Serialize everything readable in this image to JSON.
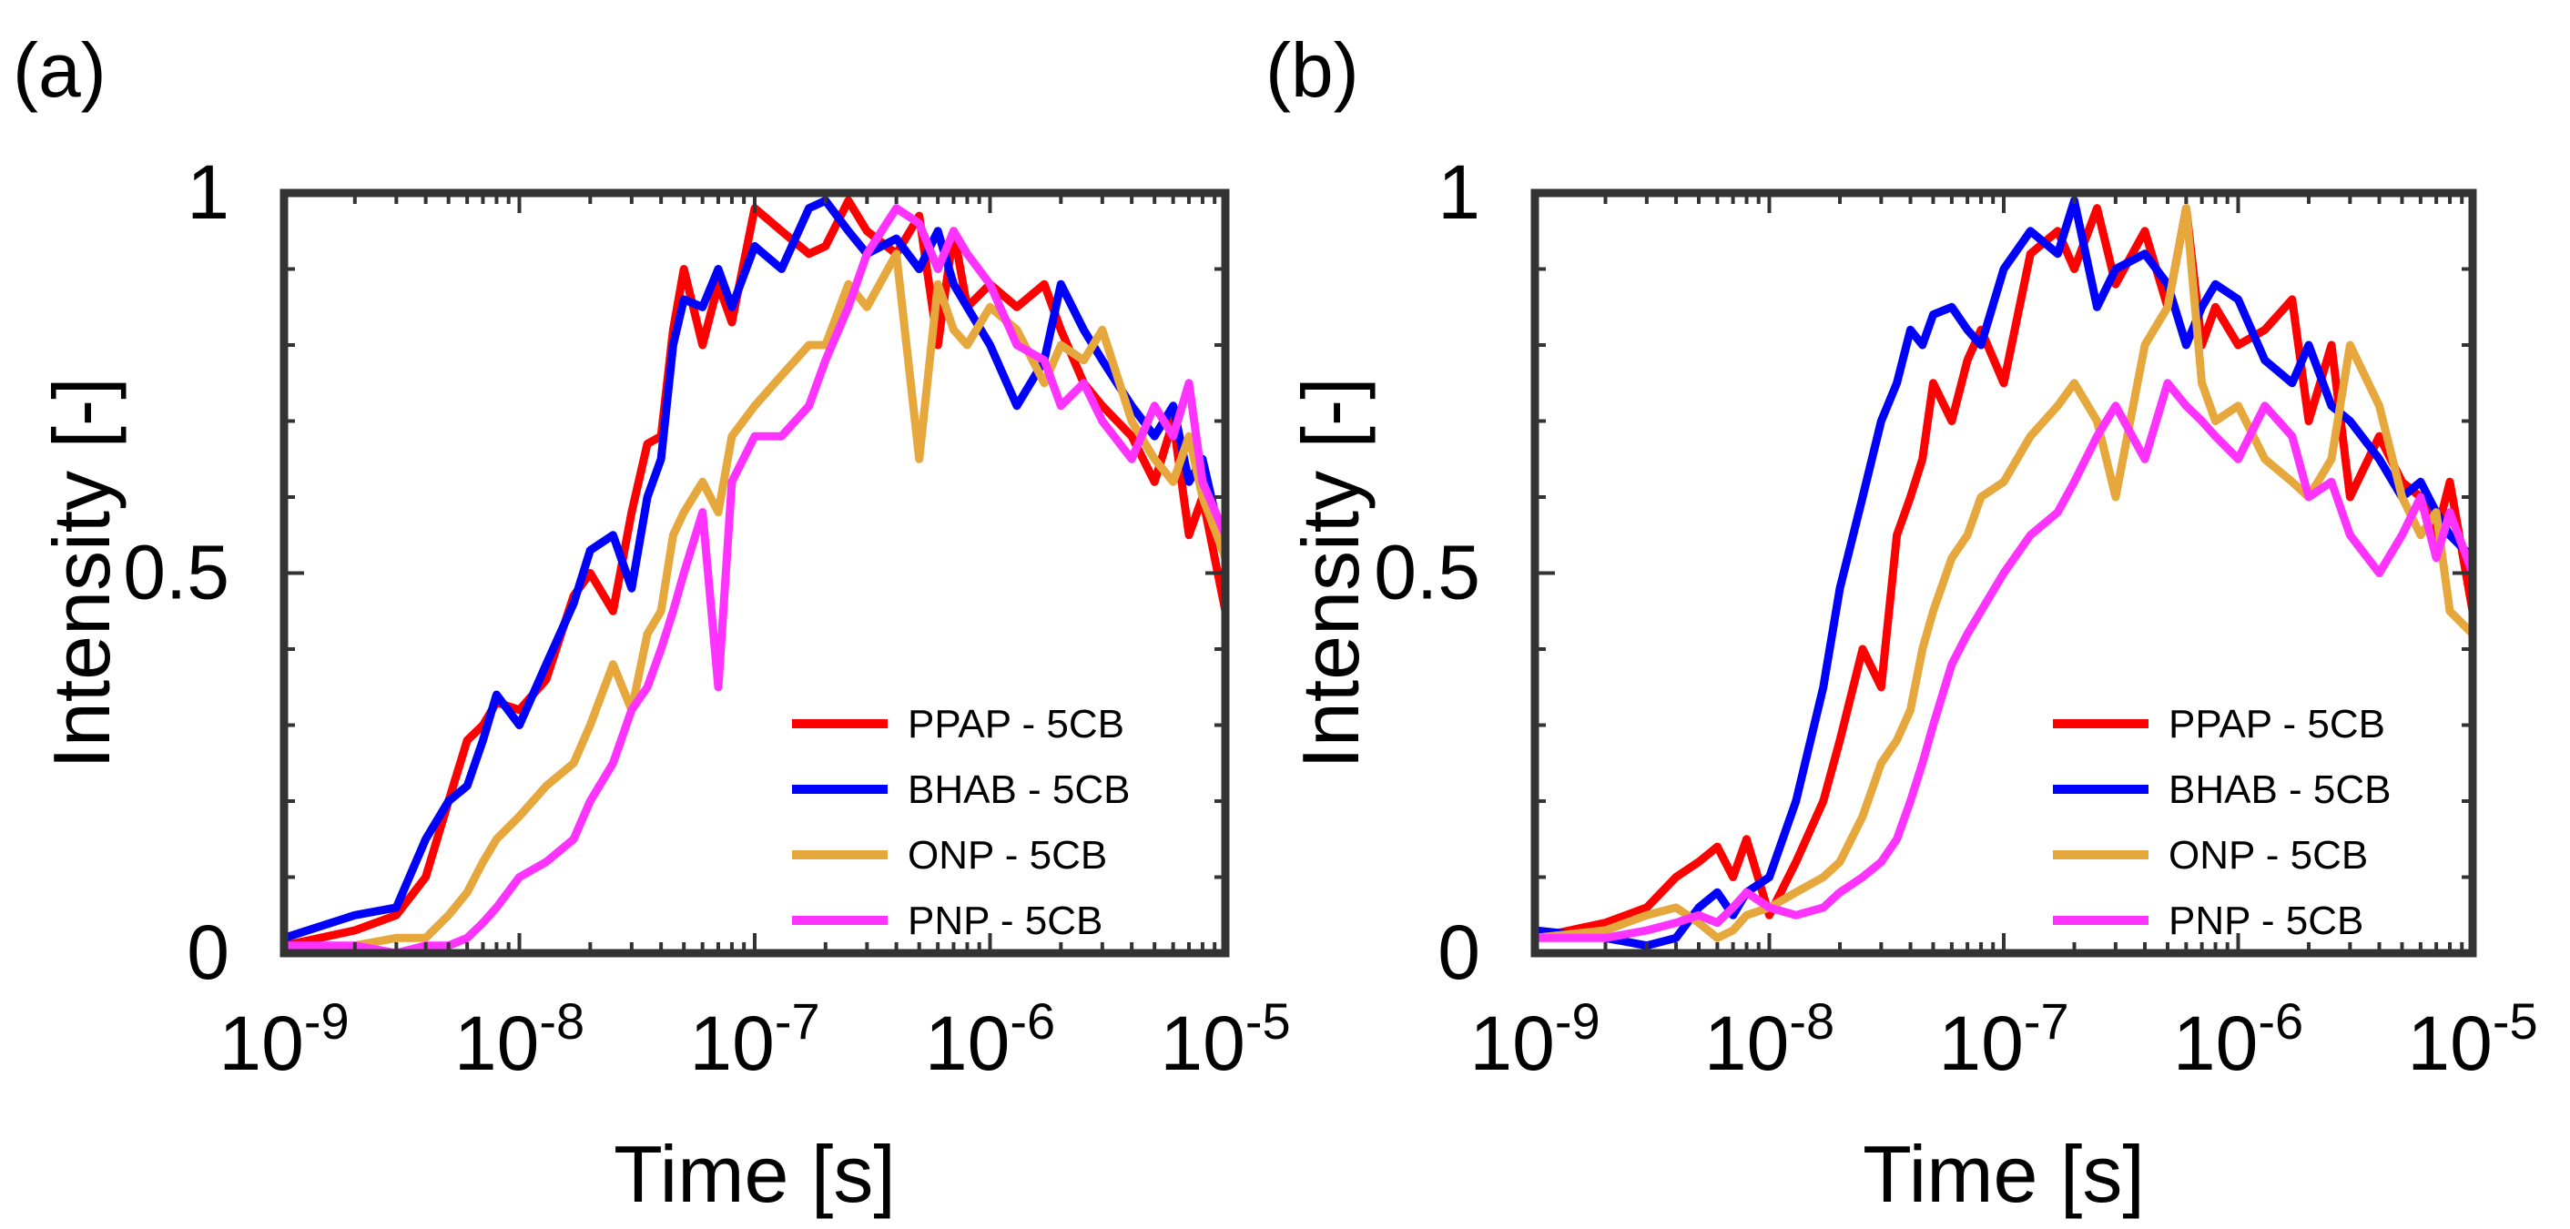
{
  "chart_data": [
    {
      "type": "line",
      "panel_label": "(a)",
      "xlabel": "Time [s]",
      "ylabel": "Intensity [-]",
      "xscale": "log",
      "xlim": [
        1e-09,
        1e-05
      ],
      "ylim": [
        0,
        1
      ],
      "xticks": [
        {
          "base": "10",
          "exp": "-9"
        },
        {
          "base": "10",
          "exp": "-8"
        },
        {
          "base": "10",
          "exp": "-7"
        },
        {
          "base": "10",
          "exp": "-6"
        },
        {
          "base": "10",
          "exp": "-5"
        }
      ],
      "yticks": [
        "0",
        "0.5",
        "1"
      ],
      "legend_position": "lower-right",
      "series": [
        {
          "name": "PPAP - 5CB",
          "color": "#ff0000",
          "x": [
            1e-09,
            2e-09,
            3e-09,
            4e-09,
            5e-09,
            6e-09,
            7e-09,
            8e-09,
            1e-08,
            1.3e-08,
            1.7e-08,
            2e-08,
            2.5e-08,
            3e-08,
            3.5e-08,
            4e-08,
            4.5e-08,
            5e-08,
            6e-08,
            7e-08,
            8e-08,
            1e-07,
            1.3e-07,
            1.7e-07,
            2e-07,
            2.5e-07,
            3e-07,
            4e-07,
            5e-07,
            6e-07,
            7e-07,
            8e-07,
            1e-06,
            1.3e-06,
            1.7e-06,
            2e-06,
            2.5e-06,
            3e-06,
            4e-06,
            5e-06,
            6e-06,
            7e-06,
            8e-06,
            1e-05
          ],
          "y": [
            0.01,
            0.03,
            0.05,
            0.1,
            0.2,
            0.28,
            0.3,
            0.33,
            0.32,
            0.36,
            0.47,
            0.5,
            0.45,
            0.58,
            0.67,
            0.68,
            0.82,
            0.9,
            0.8,
            0.88,
            0.83,
            0.98,
            0.95,
            0.92,
            0.93,
            0.99,
            0.95,
            0.92,
            0.97,
            0.8,
            0.95,
            0.85,
            0.88,
            0.85,
            0.88,
            0.82,
            0.75,
            0.72,
            0.68,
            0.62,
            0.7,
            0.55,
            0.6,
            0.45
          ]
        },
        {
          "name": "BHAB - 5CB",
          "color": "#0000ff",
          "x": [
            1e-09,
            2e-09,
            3e-09,
            4e-09,
            5e-09,
            6e-09,
            7e-09,
            8e-09,
            1e-08,
            1.3e-08,
            1.7e-08,
            2e-08,
            2.5e-08,
            3e-08,
            3.5e-08,
            4e-08,
            4.5e-08,
            5e-08,
            6e-08,
            7e-08,
            8e-08,
            1e-07,
            1.3e-07,
            1.7e-07,
            2e-07,
            2.5e-07,
            3e-07,
            4e-07,
            5e-07,
            6e-07,
            7e-07,
            8e-07,
            1e-06,
            1.3e-06,
            1.7e-06,
            2e-06,
            2.5e-06,
            3e-06,
            4e-06,
            5e-06,
            6e-06,
            7e-06,
            8e-06,
            1e-05
          ],
          "y": [
            0.02,
            0.05,
            0.06,
            0.15,
            0.2,
            0.22,
            0.28,
            0.34,
            0.3,
            0.38,
            0.46,
            0.53,
            0.55,
            0.48,
            0.6,
            0.65,
            0.8,
            0.86,
            0.85,
            0.9,
            0.85,
            0.93,
            0.9,
            0.98,
            0.99,
            0.95,
            0.92,
            0.94,
            0.9,
            0.95,
            0.88,
            0.85,
            0.8,
            0.72,
            0.78,
            0.88,
            0.82,
            0.78,
            0.72,
            0.68,
            0.72,
            0.62,
            0.65,
            0.52
          ]
        },
        {
          "name": "ONP - 5CB",
          "color": "#e6a83c",
          "x": [
            1e-09,
            2e-09,
            3e-09,
            4e-09,
            5e-09,
            6e-09,
            7e-09,
            8e-09,
            1e-08,
            1.3e-08,
            1.7e-08,
            2e-08,
            2.5e-08,
            3e-08,
            3.5e-08,
            4e-08,
            4.5e-08,
            5e-08,
            6e-08,
            7e-08,
            8e-08,
            1e-07,
            1.3e-07,
            1.7e-07,
            2e-07,
            2.5e-07,
            3e-07,
            4e-07,
            5e-07,
            6e-07,
            7e-07,
            8e-07,
            1e-06,
            1.3e-06,
            1.7e-06,
            2e-06,
            2.5e-06,
            3e-06,
            4e-06,
            5e-06,
            6e-06,
            7e-06,
            8e-06,
            1e-05
          ],
          "y": [
            0.0,
            0.01,
            0.02,
            0.02,
            0.05,
            0.08,
            0.12,
            0.15,
            0.18,
            0.22,
            0.25,
            0.3,
            0.38,
            0.32,
            0.42,
            0.45,
            0.55,
            0.58,
            0.62,
            0.58,
            0.68,
            0.72,
            0.76,
            0.8,
            0.8,
            0.88,
            0.85,
            0.92,
            0.65,
            0.88,
            0.82,
            0.8,
            0.85,
            0.82,
            0.75,
            0.8,
            0.78,
            0.82,
            0.7,
            0.65,
            0.62,
            0.68,
            0.6,
            0.52
          ]
        },
        {
          "name": "PNP - 5CB",
          "color": "#ff33ff",
          "x": [
            1e-09,
            2e-09,
            3e-09,
            4e-09,
            5e-09,
            6e-09,
            7e-09,
            8e-09,
            1e-08,
            1.3e-08,
            1.7e-08,
            2e-08,
            2.5e-08,
            3e-08,
            3.5e-08,
            4e-08,
            4.5e-08,
            5e-08,
            6e-08,
            7e-08,
            8e-08,
            1e-07,
            1.3e-07,
            1.7e-07,
            2e-07,
            2.5e-07,
            3e-07,
            4e-07,
            5e-07,
            6e-07,
            7e-07,
            8e-07,
            1e-06,
            1.3e-06,
            1.7e-06,
            2e-06,
            2.5e-06,
            3e-06,
            4e-06,
            5e-06,
            6e-06,
            7e-06,
            8e-06,
            1e-05
          ],
          "y": [
            0.01,
            0.01,
            0.0,
            0.01,
            0.01,
            0.02,
            0.04,
            0.06,
            0.1,
            0.12,
            0.15,
            0.2,
            0.25,
            0.32,
            0.35,
            0.4,
            0.45,
            0.5,
            0.58,
            0.35,
            0.62,
            0.68,
            0.68,
            0.72,
            0.78,
            0.85,
            0.92,
            0.98,
            0.96,
            0.9,
            0.95,
            0.92,
            0.88,
            0.8,
            0.78,
            0.72,
            0.75,
            0.7,
            0.65,
            0.72,
            0.68,
            0.75,
            0.62,
            0.55
          ]
        }
      ]
    },
    {
      "type": "line",
      "panel_label": "(b)",
      "xlabel": "Time [s]",
      "ylabel": "Intensity [-]",
      "xscale": "log",
      "xlim": [
        1e-09,
        1e-05
      ],
      "ylim": [
        0,
        1
      ],
      "xticks": [
        {
          "base": "10",
          "exp": "-9"
        },
        {
          "base": "10",
          "exp": "-8"
        },
        {
          "base": "10",
          "exp": "-7"
        },
        {
          "base": "10",
          "exp": "-6"
        },
        {
          "base": "10",
          "exp": "-5"
        }
      ],
      "yticks": [
        "0",
        "0.5",
        "1"
      ],
      "legend_position": "lower-right",
      "series": [
        {
          "name": "PPAP - 5CB",
          "color": "#ff0000",
          "x": [
            1e-09,
            2e-09,
            3e-09,
            4e-09,
            5e-09,
            6e-09,
            7e-09,
            8e-09,
            1e-08,
            1.3e-08,
            1.7e-08,
            2e-08,
            2.5e-08,
            3e-08,
            3.5e-08,
            4e-08,
            4.5e-08,
            5e-08,
            6e-08,
            7e-08,
            8e-08,
            1e-07,
            1.3e-07,
            1.7e-07,
            2e-07,
            2.5e-07,
            3e-07,
            4e-07,
            5e-07,
            6e-07,
            7e-07,
            8e-07,
            1e-06,
            1.3e-06,
            1.7e-06,
            2e-06,
            2.5e-06,
            3e-06,
            4e-06,
            5e-06,
            6e-06,
            7e-06,
            8e-06,
            1e-05
          ],
          "y": [
            0.02,
            0.04,
            0.06,
            0.1,
            0.12,
            0.14,
            0.1,
            0.15,
            0.05,
            0.12,
            0.2,
            0.28,
            0.4,
            0.35,
            0.55,
            0.6,
            0.65,
            0.75,
            0.7,
            0.78,
            0.82,
            0.75,
            0.92,
            0.95,
            0.9,
            0.98,
            0.88,
            0.95,
            0.85,
            0.98,
            0.8,
            0.85,
            0.8,
            0.82,
            0.86,
            0.7,
            0.8,
            0.6,
            0.68,
            0.62,
            0.6,
            0.55,
            0.62,
            0.45
          ]
        },
        {
          "name": "BHAB - 5CB",
          "color": "#0000ff",
          "x": [
            1e-09,
            2e-09,
            3e-09,
            4e-09,
            5e-09,
            6e-09,
            7e-09,
            8e-09,
            1e-08,
            1.3e-08,
            1.7e-08,
            2e-08,
            2.5e-08,
            3e-08,
            3.5e-08,
            4e-08,
            4.5e-08,
            5e-08,
            6e-08,
            7e-08,
            8e-08,
            1e-07,
            1.3e-07,
            1.7e-07,
            2e-07,
            2.5e-07,
            3e-07,
            4e-07,
            5e-07,
            6e-07,
            7e-07,
            8e-07,
            1e-06,
            1.3e-06,
            1.7e-06,
            2e-06,
            2.5e-06,
            3e-06,
            4e-06,
            5e-06,
            6e-06,
            7e-06,
            8e-06,
            1e-05
          ],
          "y": [
            0.03,
            0.02,
            0.01,
            0.02,
            0.06,
            0.08,
            0.05,
            0.08,
            0.1,
            0.2,
            0.35,
            0.48,
            0.6,
            0.7,
            0.75,
            0.82,
            0.8,
            0.84,
            0.85,
            0.82,
            0.8,
            0.9,
            0.95,
            0.92,
            0.99,
            0.85,
            0.9,
            0.92,
            0.88,
            0.8,
            0.85,
            0.88,
            0.86,
            0.78,
            0.75,
            0.8,
            0.72,
            0.7,
            0.65,
            0.6,
            0.62,
            0.58,
            0.55,
            0.52
          ]
        },
        {
          "name": "ONP - 5CB",
          "color": "#e6a83c",
          "x": [
            1e-09,
            2e-09,
            3e-09,
            4e-09,
            5e-09,
            6e-09,
            7e-09,
            8e-09,
            1e-08,
            1.3e-08,
            1.7e-08,
            2e-08,
            2.5e-08,
            3e-08,
            3.5e-08,
            4e-08,
            4.5e-08,
            5e-08,
            6e-08,
            7e-08,
            8e-08,
            1e-07,
            1.3e-07,
            1.7e-07,
            2e-07,
            2.5e-07,
            3e-07,
            4e-07,
            5e-07,
            6e-07,
            7e-07,
            8e-07,
            1e-06,
            1.3e-06,
            1.7e-06,
            2e-06,
            2.5e-06,
            3e-06,
            4e-06,
            5e-06,
            6e-06,
            7e-06,
            8e-06,
            1e-05
          ],
          "y": [
            0.02,
            0.03,
            0.05,
            0.06,
            0.04,
            0.02,
            0.03,
            0.05,
            0.06,
            0.08,
            0.1,
            0.12,
            0.18,
            0.25,
            0.28,
            0.32,
            0.4,
            0.45,
            0.52,
            0.55,
            0.6,
            0.62,
            0.68,
            0.72,
            0.75,
            0.7,
            0.6,
            0.8,
            0.85,
            0.98,
            0.75,
            0.7,
            0.72,
            0.65,
            0.62,
            0.6,
            0.65,
            0.8,
            0.72,
            0.6,
            0.55,
            0.58,
            0.45,
            0.42
          ]
        },
        {
          "name": "PNP - 5CB",
          "color": "#ff33ff",
          "x": [
            1e-09,
            2e-09,
            3e-09,
            4e-09,
            5e-09,
            6e-09,
            7e-09,
            8e-09,
            1e-08,
            1.3e-08,
            1.7e-08,
            2e-08,
            2.5e-08,
            3e-08,
            3.5e-08,
            4e-08,
            4.5e-08,
            5e-08,
            6e-08,
            7e-08,
            8e-08,
            1e-07,
            1.3e-07,
            1.7e-07,
            2e-07,
            2.5e-07,
            3e-07,
            4e-07,
            5e-07,
            6e-07,
            7e-07,
            8e-07,
            1e-06,
            1.3e-06,
            1.7e-06,
            2e-06,
            2.5e-06,
            3e-06,
            4e-06,
            5e-06,
            6e-06,
            7e-06,
            8e-06,
            1e-05
          ],
          "y": [
            0.02,
            0.02,
            0.03,
            0.04,
            0.05,
            0.04,
            0.06,
            0.08,
            0.06,
            0.05,
            0.06,
            0.08,
            0.1,
            0.12,
            0.15,
            0.2,
            0.25,
            0.3,
            0.38,
            0.42,
            0.45,
            0.5,
            0.55,
            0.58,
            0.62,
            0.68,
            0.72,
            0.65,
            0.75,
            0.72,
            0.7,
            0.68,
            0.65,
            0.72,
            0.68,
            0.6,
            0.62,
            0.55,
            0.5,
            0.55,
            0.6,
            0.52,
            0.58,
            0.5
          ]
        }
      ]
    }
  ]
}
